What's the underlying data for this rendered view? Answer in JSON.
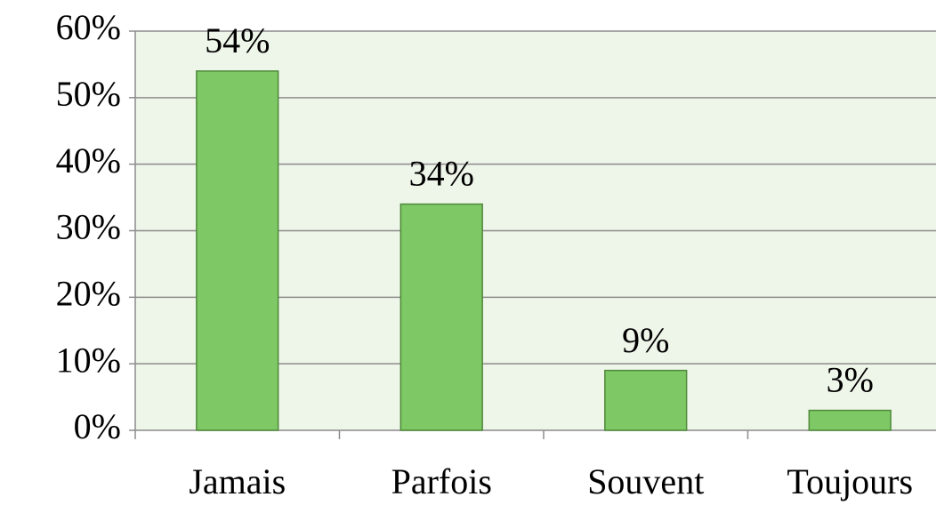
{
  "chart_data": {
    "type": "bar",
    "categories": [
      "Jamais",
      "Parfois",
      "Souvent",
      "Toujours"
    ],
    "values": [
      54,
      34,
      9,
      3
    ],
    "value_labels": [
      "54%",
      "34%",
      "9%",
      "3%"
    ],
    "color": "#7ec865",
    "ylim": [
      0,
      60
    ],
    "yticks": [
      {
        "value": 0,
        "label": "0%"
      },
      {
        "value": 10,
        "label": "10%"
      },
      {
        "value": 20,
        "label": "20%"
      },
      {
        "value": 30,
        "label": "30%"
      },
      {
        "value": 40,
        "label": "40%"
      },
      {
        "value": 50,
        "label": "50%"
      },
      {
        "value": 60,
        "label": "60%"
      }
    ],
    "grid": true
  }
}
